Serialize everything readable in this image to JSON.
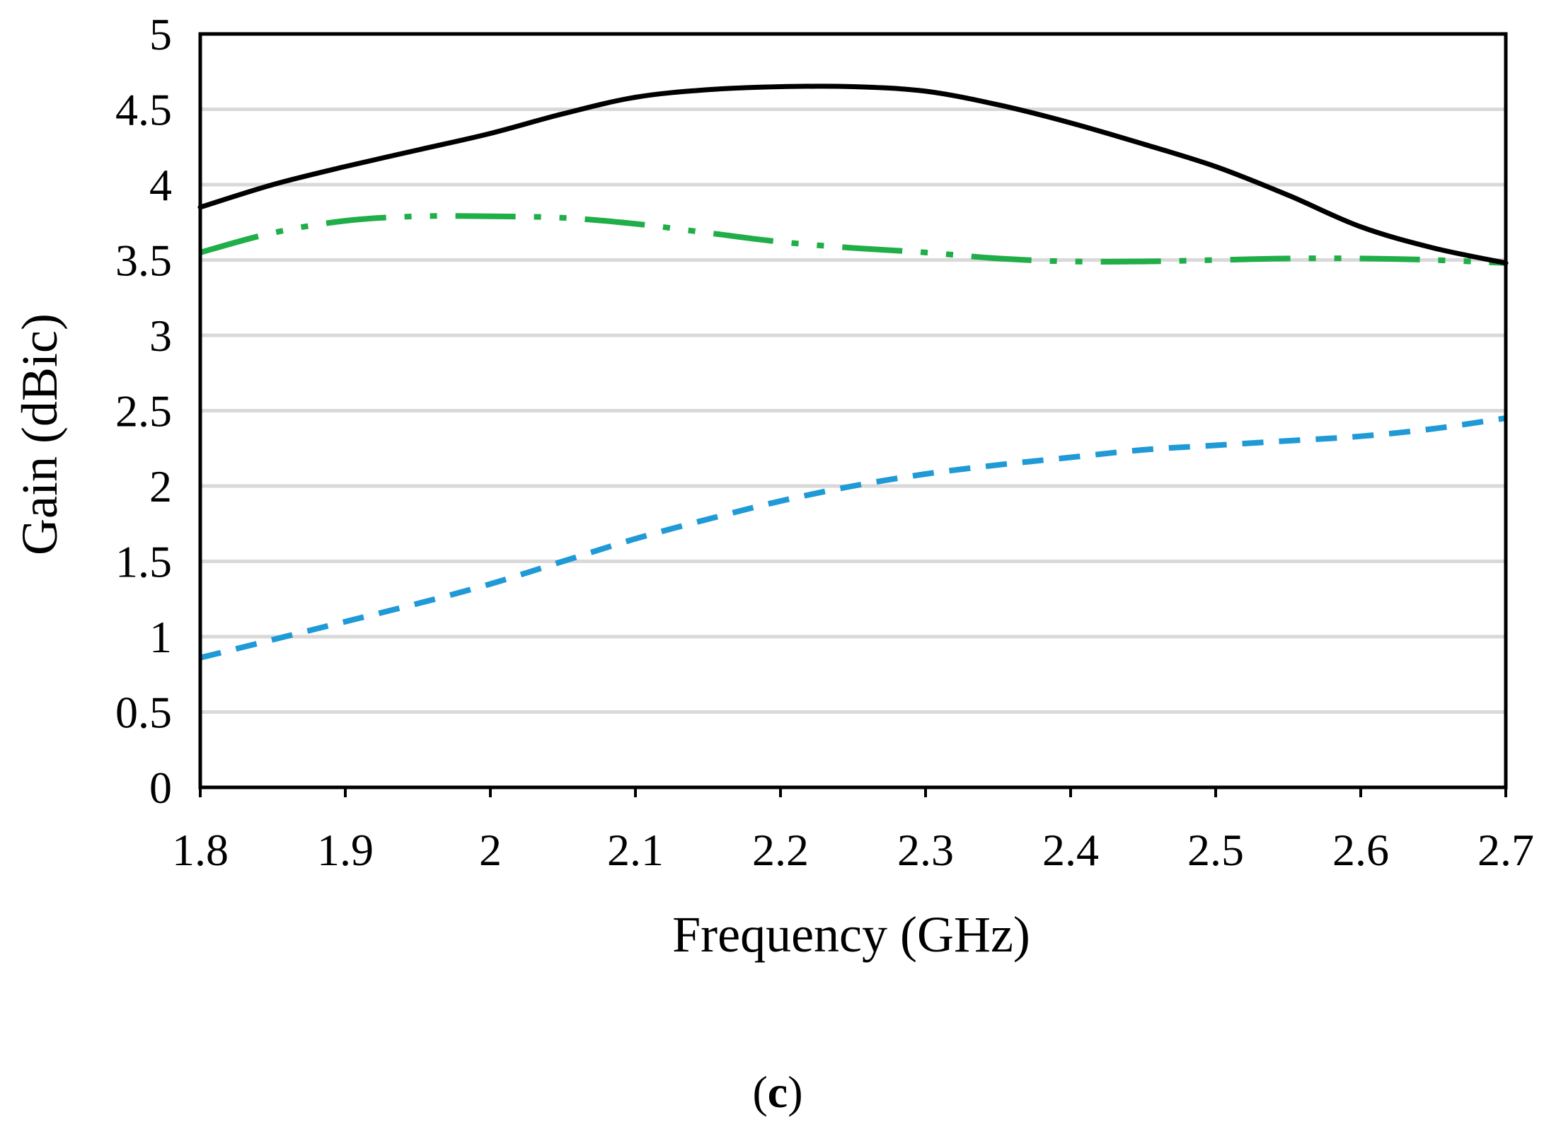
{
  "chart_data": {
    "type": "line",
    "title": "",
    "xlabel": "Frequency (GHz)",
    "ylabel": "Gain (dBic)",
    "xlim": [
      1.8,
      2.7
    ],
    "ylim": [
      0,
      5
    ],
    "xticks": [
      1.8,
      1.9,
      2.0,
      2.1,
      2.2,
      2.3,
      2.4,
      2.5,
      2.6,
      2.7
    ],
    "xtick_labels": [
      "1.8",
      "1.9",
      "2",
      "2.1",
      "2.2",
      "2.3",
      "2.4",
      "2.5",
      "2.6",
      "2.7"
    ],
    "yticks": [
      0,
      0.5,
      1,
      1.5,
      2,
      2.5,
      3,
      3.5,
      4,
      4.5,
      5
    ],
    "ytick_labels": [
      "0",
      "0.5",
      "1",
      "1.5",
      "2",
      "2.5",
      "3",
      "3.5",
      "4",
      "4.5",
      "5"
    ],
    "grid": "horizontal",
    "caption": {
      "open": "(",
      "letter": "c",
      "close": ")"
    },
    "series": [
      {
        "name": "solid-black",
        "color": "#000000",
        "style": "solid",
        "x": [
          1.8,
          1.85,
          1.9,
          1.95,
          2.0,
          2.05,
          2.1,
          2.15,
          2.2,
          2.25,
          2.3,
          2.35,
          2.4,
          2.45,
          2.5,
          2.55,
          2.6,
          2.65,
          2.7
        ],
        "values": [
          3.85,
          4.0,
          4.12,
          4.23,
          4.34,
          4.47,
          4.58,
          4.63,
          4.65,
          4.65,
          4.62,
          4.53,
          4.41,
          4.27,
          4.12,
          3.93,
          3.72,
          3.58,
          3.48
        ]
      },
      {
        "name": "dash-dot-dot-green",
        "color": "#1fae47",
        "style": "dash-dot-dot",
        "x": [
          1.8,
          1.85,
          1.9,
          1.95,
          2.0,
          2.05,
          2.1,
          2.15,
          2.2,
          2.25,
          2.3,
          2.35,
          2.4,
          2.45,
          2.5,
          2.55,
          2.6,
          2.65,
          2.7
        ],
        "values": [
          3.55,
          3.68,
          3.76,
          3.79,
          3.79,
          3.78,
          3.74,
          3.68,
          3.62,
          3.58,
          3.55,
          3.51,
          3.49,
          3.49,
          3.5,
          3.51,
          3.51,
          3.5,
          3.48
        ]
      },
      {
        "name": "dashed-blue",
        "color": "#1f9ad6",
        "style": "dashed",
        "x": [
          1.8,
          1.85,
          1.9,
          1.95,
          2.0,
          2.05,
          2.1,
          2.15,
          2.2,
          2.25,
          2.3,
          2.35,
          2.4,
          2.45,
          2.5,
          2.55,
          2.6,
          2.65,
          2.7
        ],
        "values": [
          0.86,
          0.98,
          1.1,
          1.22,
          1.35,
          1.5,
          1.65,
          1.78,
          1.9,
          2.0,
          2.08,
          2.14,
          2.19,
          2.24,
          2.27,
          2.3,
          2.33,
          2.38,
          2.45
        ]
      }
    ]
  }
}
